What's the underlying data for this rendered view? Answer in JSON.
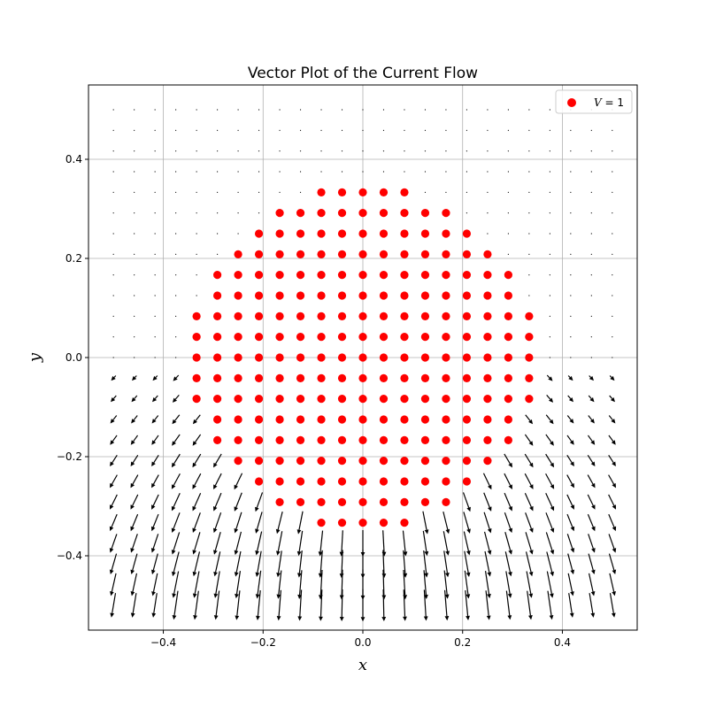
{
  "chart_data": {
    "type": "scatter",
    "title": "Vector Plot of the Current Flow",
    "xlabel": "x",
    "ylabel": "y",
    "xlim": [
      -0.55,
      0.55
    ],
    "ylim": [
      -0.55,
      0.55
    ],
    "xticks": [
      -0.4,
      -0.2,
      0.0,
      0.2,
      0.4
    ],
    "yticks": [
      -0.4,
      -0.2,
      0.0,
      0.2,
      0.4
    ],
    "xtick_labels": [
      "−0.4",
      "−0.2",
      "0.0",
      "0.2",
      "0.4"
    ],
    "ytick_labels": [
      "−0.4",
      "−0.2",
      "0.0",
      "0.2",
      "0.4"
    ],
    "grid": true,
    "legend": {
      "position": "top-right",
      "entries": [
        {
          "label_var": "V",
          "label_rest": " = 1",
          "color": "#ff0000",
          "marker": "circle"
        }
      ]
    },
    "electrode": {
      "name": "V = 1",
      "color": "#ff0000",
      "x_grid_start": -0.5,
      "y_grid_start": -0.5,
      "grid_step": 0.041667,
      "rows": [
        {
          "y": 0.3333,
          "x_min": -0.0833,
          "x_max": 0.0833
        },
        {
          "y": 0.2917,
          "x_min": -0.1667,
          "x_max": 0.1667
        },
        {
          "y": 0.25,
          "x_min": -0.2083,
          "x_max": 0.2083
        },
        {
          "y": 0.2083,
          "x_min": -0.25,
          "x_max": 0.25
        },
        {
          "y": 0.1667,
          "x_min": -0.2917,
          "x_max": 0.2917
        },
        {
          "y": 0.125,
          "x_min": -0.2917,
          "x_max": 0.2917
        },
        {
          "y": 0.0833,
          "x_min": -0.3333,
          "x_max": 0.3333
        },
        {
          "y": 0.0417,
          "x_min": -0.3333,
          "x_max": 0.3333
        },
        {
          "y": 0.0,
          "x_min": -0.3333,
          "x_max": 0.3333
        },
        {
          "y": -0.0417,
          "x_min": -0.3333,
          "x_max": 0.3333
        },
        {
          "y": -0.0833,
          "x_min": -0.3333,
          "x_max": 0.3333
        },
        {
          "y": -0.125,
          "x_min": -0.2917,
          "x_max": 0.2917
        },
        {
          "y": -0.1667,
          "x_min": -0.2917,
          "x_max": 0.2917
        },
        {
          "y": -0.2083,
          "x_min": -0.25,
          "x_max": 0.25
        },
        {
          "y": -0.25,
          "x_min": -0.2083,
          "x_max": 0.2083
        },
        {
          "y": -0.2917,
          "x_min": -0.1667,
          "x_max": 0.1667
        },
        {
          "y": -0.3333,
          "x_min": -0.0833,
          "x_max": 0.0833
        }
      ]
    },
    "vector_field": {
      "description": "quiver arrows on a 25x25 grid over [-0.5, 0.5]; current flows downward out of the bottom half of the electrode",
      "grid_n": 25,
      "range": [
        -0.5,
        0.5
      ],
      "arrow_color": "#000000"
    }
  }
}
